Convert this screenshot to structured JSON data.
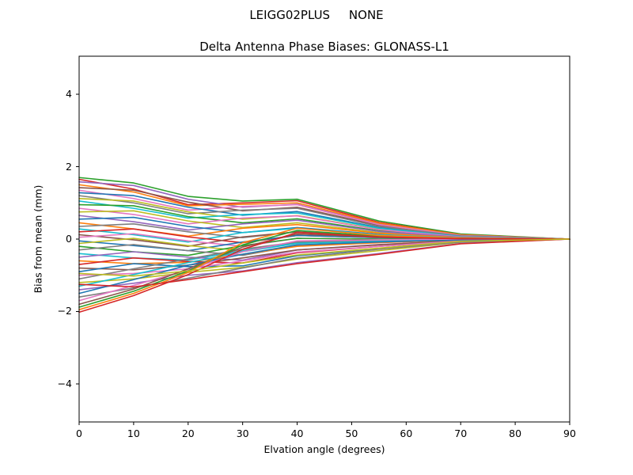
{
  "figure": {
    "suptitle": "LEIGG02PLUS     NONE"
  },
  "chart_data": {
    "type": "line",
    "suptitle": "LEIGG02PLUS     NONE",
    "title": "Delta Antenna Phase Biases: GLONASS-L1",
    "xlabel": "Elvation angle (degrees)",
    "ylabel": "Bias from mean (mm)",
    "xlim": [
      0,
      90
    ],
    "ylim": [
      -5.05,
      5.05
    ],
    "x_ticks": [
      0,
      10,
      20,
      30,
      40,
      50,
      60,
      70,
      80,
      90
    ],
    "x_tick_labels": [
      "0",
      "10",
      "20",
      "30",
      "40",
      "50",
      "60",
      "70",
      "80",
      "90"
    ],
    "y_ticks": [
      -4,
      -2,
      0,
      2,
      4
    ],
    "y_tick_labels": [
      "−4",
      "−2",
      "0",
      "2",
      "4"
    ],
    "grid": false,
    "legend": "none",
    "note": "~45 unlabeled per-satellite delta phase-bias curves; values estimated from plot at anchor elevations; all converge to 0 mm at 90 deg",
    "x": [
      0,
      10,
      20,
      30,
      40,
      55,
      70,
      90
    ],
    "palette": [
      "#1f77b4",
      "#ff7f0e",
      "#2ca02c",
      "#d62728",
      "#9467bd",
      "#8c564b",
      "#e377c2",
      "#7f7f7f",
      "#bcbd22",
      "#17becf"
    ],
    "series": [
      {
        "color": 2,
        "y": [
          1.7,
          1.55,
          1.18,
          1.05,
          1.1,
          0.5,
          0.14,
          0.0
        ]
      },
      {
        "color": 3,
        "y": [
          1.65,
          1.38,
          0.95,
          1.0,
          1.06,
          0.46,
          0.12,
          0.0
        ]
      },
      {
        "color": 4,
        "y": [
          1.58,
          1.48,
          1.1,
          0.88,
          0.96,
          0.42,
          0.11,
          0.0
        ]
      },
      {
        "color": 1,
        "y": [
          1.5,
          1.3,
          0.92,
          0.96,
          1.0,
          0.44,
          0.12,
          0.0
        ]
      },
      {
        "color": 5,
        "y": [
          1.42,
          1.35,
          1.02,
          0.78,
          0.88,
          0.38,
          0.1,
          0.0
        ]
      },
      {
        "color": 6,
        "y": [
          1.35,
          1.12,
          0.8,
          0.9,
          0.95,
          0.4,
          0.1,
          0.0
        ]
      },
      {
        "color": 0,
        "y": [
          1.28,
          1.2,
          0.88,
          0.66,
          0.76,
          0.32,
          0.08,
          0.0
        ]
      },
      {
        "color": 7,
        "y": [
          1.2,
          1.0,
          0.7,
          0.8,
          0.85,
          0.35,
          0.09,
          0.0
        ]
      },
      {
        "color": 8,
        "y": [
          1.12,
          1.05,
          0.75,
          0.55,
          0.65,
          0.27,
          0.06,
          0.0
        ]
      },
      {
        "color": 9,
        "y": [
          1.05,
          0.85,
          0.58,
          0.68,
          0.72,
          0.3,
          0.07,
          0.0
        ]
      },
      {
        "color": 2,
        "y": [
          0.95,
          0.92,
          0.62,
          0.45,
          0.56,
          0.23,
          0.05,
          0.0
        ]
      },
      {
        "color": 6,
        "y": [
          0.85,
          0.68,
          0.42,
          0.58,
          0.64,
          0.26,
          0.06,
          0.0
        ]
      },
      {
        "color": 8,
        "y": [
          0.75,
          0.78,
          0.5,
          0.32,
          0.45,
          0.18,
          0.04,
          0.0
        ]
      },
      {
        "color": 4,
        "y": [
          0.65,
          0.48,
          0.25,
          0.42,
          0.52,
          0.21,
          0.05,
          0.0
        ]
      },
      {
        "color": 0,
        "y": [
          0.55,
          0.6,
          0.35,
          0.18,
          0.32,
          0.13,
          0.03,
          0.0
        ]
      },
      {
        "color": 1,
        "y": [
          0.45,
          0.28,
          0.08,
          0.3,
          0.4,
          0.16,
          0.04,
          0.0
        ]
      },
      {
        "color": 7,
        "y": [
          0.35,
          0.42,
          0.2,
          0.04,
          0.2,
          0.08,
          0.02,
          0.0
        ]
      },
      {
        "color": 9,
        "y": [
          0.28,
          0.12,
          -0.08,
          0.18,
          0.3,
          0.12,
          0.03,
          0.0
        ]
      },
      {
        "color": 3,
        "y": [
          0.2,
          0.28,
          0.06,
          -0.1,
          0.1,
          0.04,
          0.01,
          0.0
        ]
      },
      {
        "color": 5,
        "y": [
          0.12,
          -0.02,
          -0.2,
          0.06,
          0.2,
          0.08,
          0.02,
          0.0
        ]
      },
      {
        "color": 6,
        "y": [
          0.05,
          0.15,
          -0.05,
          -0.2,
          0.02,
          0.0,
          0.0,
          0.0
        ]
      },
      {
        "color": 0,
        "y": [
          -0.05,
          -0.18,
          -0.32,
          -0.08,
          0.1,
          0.04,
          0.01,
          0.0
        ]
      },
      {
        "color": 8,
        "y": [
          -0.12,
          0.02,
          -0.18,
          -0.32,
          -0.08,
          -0.04,
          -0.01,
          0.0
        ]
      },
      {
        "color": 2,
        "y": [
          -0.2,
          -0.35,
          -0.45,
          -0.18,
          0.02,
          0.0,
          0.0,
          0.0
        ]
      },
      {
        "color": 7,
        "y": [
          -0.3,
          -0.15,
          -0.32,
          -0.45,
          -0.18,
          -0.09,
          -0.02,
          0.0
        ]
      },
      {
        "color": 9,
        "y": [
          -0.4,
          -0.52,
          -0.58,
          -0.32,
          -0.1,
          -0.05,
          -0.01,
          0.0
        ]
      },
      {
        "color": 4,
        "y": [
          -0.5,
          -0.35,
          -0.5,
          -0.58,
          -0.3,
          -0.15,
          -0.04,
          0.0
        ]
      },
      {
        "color": 1,
        "y": [
          -0.6,
          -0.68,
          -0.64,
          -0.42,
          -0.2,
          -0.1,
          -0.02,
          0.0
        ]
      },
      {
        "color": 3,
        "y": [
          -0.7,
          -0.52,
          -0.62,
          -0.66,
          -0.38,
          -0.2,
          -0.05,
          0.0
        ]
      },
      {
        "color": 5,
        "y": [
          -0.8,
          -0.85,
          -0.72,
          -0.52,
          -0.3,
          -0.16,
          -0.04,
          0.0
        ]
      },
      {
        "color": 0,
        "y": [
          -0.9,
          -0.68,
          -0.76,
          -0.74,
          -0.46,
          -0.26,
          -0.07,
          0.0
        ]
      },
      {
        "color": 6,
        "y": [
          -1.0,
          -0.95,
          -0.82,
          -0.6,
          -0.36,
          -0.2,
          -0.05,
          0.0
        ]
      },
      {
        "color": 7,
        "y": [
          -1.1,
          -0.82,
          -0.55,
          -0.28,
          -0.08,
          -0.04,
          -0.01,
          0.0
        ]
      },
      {
        "color": 8,
        "y": [
          -1.2,
          -1.1,
          -0.92,
          -0.78,
          -0.55,
          -0.32,
          -0.09,
          0.0
        ]
      },
      {
        "color": 9,
        "y": [
          -1.3,
          -0.98,
          -0.65,
          -0.35,
          -0.12,
          -0.06,
          -0.01,
          0.0
        ]
      },
      {
        "color": 4,
        "y": [
          -1.4,
          -1.22,
          -1.0,
          -0.88,
          -0.65,
          -0.4,
          -0.12,
          0.0
        ]
      },
      {
        "color": 0,
        "y": [
          -1.5,
          -1.12,
          -0.72,
          -0.42,
          -0.16,
          -0.08,
          -0.02,
          0.0
        ]
      },
      {
        "color": 7,
        "y": [
          -1.6,
          -1.35,
          -1.08,
          -0.8,
          -0.52,
          -0.28,
          -0.08,
          0.0
        ]
      },
      {
        "color": 6,
        "y": [
          -1.7,
          -1.28,
          -0.85,
          -0.35,
          -0.05,
          -0.02,
          0.0,
          0.0
        ]
      },
      {
        "color": 5,
        "y": [
          -1.8,
          -1.38,
          -0.82,
          -0.22,
          0.14,
          0.05,
          0.01,
          0.0
        ]
      },
      {
        "color": 2,
        "y": [
          -1.88,
          -1.44,
          -0.88,
          -0.16,
          0.24,
          0.08,
          0.02,
          0.0
        ]
      },
      {
        "color": 1,
        "y": [
          -1.95,
          -1.5,
          -0.92,
          -0.1,
          0.3,
          0.1,
          0.02,
          0.0
        ]
      },
      {
        "color": 3,
        "y": [
          -2.02,
          -1.56,
          -0.98,
          -0.28,
          0.18,
          0.06,
          0.01,
          0.0
        ]
      },
      {
        "color": 3,
        "y": [
          -1.25,
          -1.32,
          -1.12,
          -0.9,
          -0.68,
          -0.42,
          -0.13,
          0.0
        ]
      },
      {
        "color": 8,
        "y": [
          -0.95,
          -1.02,
          -0.88,
          -0.66,
          -0.44,
          -0.25,
          -0.06,
          0.0
        ]
      }
    ]
  }
}
